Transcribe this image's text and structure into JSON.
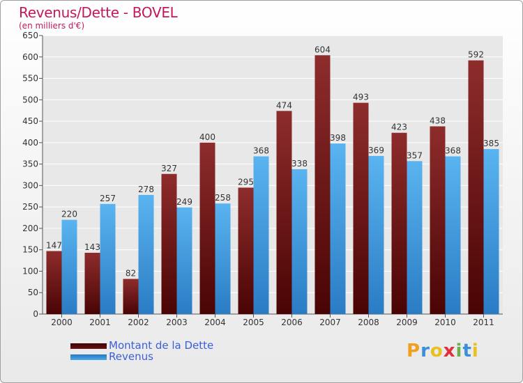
{
  "title": "Revenus/Dette - BOVEL",
  "subtitle": "(en milliers d'€)",
  "colors": {
    "dette": "#8b1a1a",
    "revenus": "#3d9ce0",
    "title": "#c2185b"
  },
  "chart_data": {
    "type": "bar",
    "categories": [
      "2000",
      "2001",
      "2002",
      "2003",
      "2004",
      "2005",
      "2006",
      "2007",
      "2008",
      "2009",
      "2010",
      "2011"
    ],
    "series": [
      {
        "name": "Montant de la Dette",
        "values": [
          147,
          143,
          82,
          327,
          400,
          295,
          474,
          604,
          493,
          423,
          438,
          592
        ]
      },
      {
        "name": "Revenus",
        "values": [
          220,
          257,
          278,
          249,
          258,
          368,
          338,
          398,
          369,
          357,
          368,
          385
        ]
      }
    ],
    "ylim": [
      0,
      650
    ],
    "yticks": [
      0,
      50,
      100,
      150,
      200,
      250,
      300,
      350,
      400,
      450,
      500,
      550,
      600,
      650
    ],
    "grid": true,
    "legend": "bottom-left"
  },
  "logo": {
    "text": "Proxiti",
    "letters": [
      "P",
      "r",
      "o",
      "x",
      "i",
      "t",
      "i"
    ],
    "colors": [
      "#f0a020",
      "#3a8fd8",
      "#e8c020",
      "#e0303a",
      "#6ab04c",
      "#3a8fd8",
      "#e8c020"
    ]
  }
}
